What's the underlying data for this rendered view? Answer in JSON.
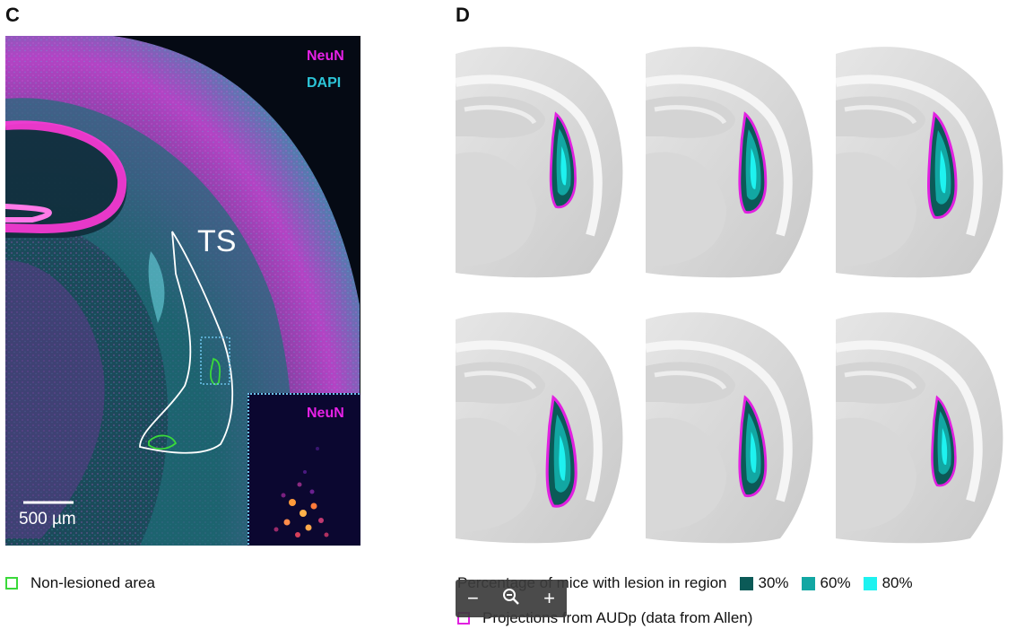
{
  "panels": {
    "c": {
      "letter": "C",
      "stain_1": "NeuN",
      "stain_2": "DAPI",
      "region_label": "TS",
      "scale_bar": "500 µm",
      "inset_label": "NeuN",
      "legend": "Non-lesioned area"
    },
    "d": {
      "letter": "D",
      "legend_title": "Percentage of mice with lesion in region",
      "levels": [
        {
          "label": "30%",
          "color": "#0b5a57"
        },
        {
          "label": "60%",
          "color": "#12a7a3"
        },
        {
          "label": "80%",
          "color": "#1ef2f0"
        }
      ],
      "projection_legend": "Projections from AUDp (data from Allen)"
    }
  },
  "colors": {
    "neun": "#e621e6",
    "dapi": "#2cc5d8",
    "non_lesioned": "#3ad93a",
    "projection": "#e121e0"
  },
  "zoom_controls": {
    "minus": "−",
    "zoom_icon": "magnifier-minus-icon",
    "plus": "+"
  }
}
